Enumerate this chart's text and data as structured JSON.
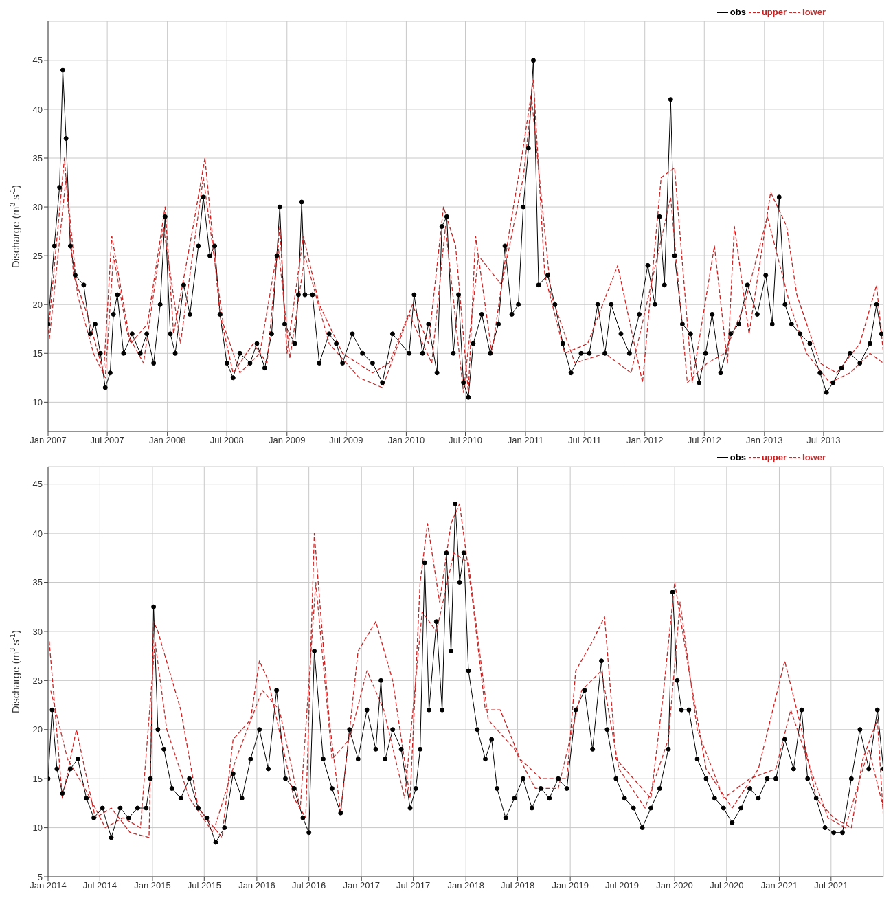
{
  "chart_data": [
    {
      "type": "line",
      "ylabel": "Discharge (m$^{3}$ s$^{-1}$)",
      "xlim": [
        "2007-01-01",
        "2013-12-31"
      ],
      "ylim": [
        7,
        49
      ],
      "yticks": [
        10,
        15,
        20,
        25,
        30,
        35,
        40,
        45
      ],
      "xticks": [
        {
          "value": "2007-01-01",
          "label": "Jan 2007"
        },
        {
          "value": "2007-07-01",
          "label": "Jul 2007"
        },
        {
          "value": "2008-01-01",
          "label": "Jan 2008"
        },
        {
          "value": "2008-07-01",
          "label": "Jul 2008"
        },
        {
          "value": "2009-01-01",
          "label": "Jan 2009"
        },
        {
          "value": "2009-07-01",
          "label": "Jul 2009"
        },
        {
          "value": "2010-01-01",
          "label": "Jan 2010"
        },
        {
          "value": "2010-07-01",
          "label": "Jul 2010"
        },
        {
          "value": "2011-01-01",
          "label": "Jan 2011"
        },
        {
          "value": "2011-07-01",
          "label": "Jul 2011"
        },
        {
          "value": "2012-01-01",
          "label": "Jan 2012"
        },
        {
          "value": "2012-07-01",
          "label": "Jul 2012"
        },
        {
          "value": "2013-01-01",
          "label": "Jan 2013"
        },
        {
          "value": "2013-07-01",
          "label": "Jul 2013"
        }
      ],
      "grid": true,
      "legend": "top right",
      "series": [
        {
          "name": "obs",
          "color": "#000000",
          "marker": "circle",
          "line_style": "solid",
          "x": [
            "2007-01-01",
            "2007-01-20",
            "2007-02-05",
            "2007-02-15",
            "2007-02-25",
            "2007-03-10",
            "2007-03-25",
            "2007-04-20",
            "2007-05-10",
            "2007-05-25",
            "2007-06-10",
            "2007-06-25",
            "2007-07-10",
            "2007-07-20",
            "2007-08-01",
            "2007-08-20",
            "2007-09-15",
            "2007-10-10",
            "2007-10-30",
            "2007-11-20",
            "2007-12-10",
            "2007-12-25",
            "2008-01-10",
            "2008-01-25",
            "2008-02-20",
            "2008-03-10",
            "2008-04-05",
            "2008-04-20",
            "2008-05-10",
            "2008-05-25",
            "2008-06-10",
            "2008-07-01",
            "2008-07-20",
            "2008-08-10",
            "2008-09-10",
            "2008-10-01",
            "2008-10-25",
            "2008-11-15",
            "2008-12-01",
            "2008-12-10",
            "2008-12-25",
            "2009-01-25",
            "2009-02-05",
            "2009-02-15",
            "2009-02-25",
            "2009-03-20",
            "2009-04-10",
            "2009-05-10",
            "2009-06-01",
            "2009-06-20",
            "2009-07-20",
            "2009-08-20",
            "2009-09-20",
            "2009-10-20",
            "2009-11-20",
            "2010-01-10",
            "2010-01-25",
            "2010-02-20",
            "2010-03-10",
            "2010-04-05",
            "2010-04-20",
            "2010-05-05",
            "2010-05-25",
            "2010-06-10",
            "2010-06-25",
            "2010-07-10",
            "2010-07-25",
            "2010-08-20",
            "2010-09-15",
            "2010-10-10",
            "2010-10-30",
            "2010-11-20",
            "2010-12-10",
            "2010-12-25",
            "2011-01-10",
            "2011-01-25",
            "2011-02-10",
            "2011-03-10",
            "2011-04-01",
            "2011-04-25",
            "2011-05-20",
            "2011-06-20",
            "2011-07-15",
            "2011-08-10",
            "2011-09-01",
            "2011-09-20",
            "2011-10-20",
            "2011-11-15",
            "2011-12-15",
            "2012-01-10",
            "2012-02-01",
            "2012-02-15",
            "2012-03-01",
            "2012-03-20",
            "2012-04-01",
            "2012-04-25",
            "2012-05-20",
            "2012-06-15",
            "2012-07-05",
            "2012-07-25",
            "2012-08-20",
            "2012-09-20",
            "2012-10-15",
            "2012-11-10",
            "2012-12-10",
            "2013-01-05",
            "2013-01-25",
            "2013-02-15",
            "2013-03-05",
            "2013-03-25",
            "2013-04-20",
            "2013-05-20",
            "2013-06-20",
            "2013-07-10",
            "2013-07-30",
            "2013-08-25",
            "2013-09-20",
            "2013-10-20",
            "2013-11-20",
            "2013-12-10",
            "2013-12-25"
          ],
          "values": [
            18,
            26,
            32,
            44,
            37,
            26,
            23,
            22,
            17,
            18,
            15,
            11.5,
            13,
            19,
            21,
            15,
            17,
            15,
            17,
            14,
            20,
            29,
            17,
            15,
            22,
            19,
            26,
            31,
            25,
            26,
            19,
            14,
            12.5,
            15,
            14,
            16,
            13.5,
            17,
            25,
            30,
            18,
            16,
            21,
            30.5,
            21,
            21,
            14,
            17,
            16,
            14,
            17,
            15,
            14,
            12,
            17,
            15,
            21,
            15,
            18,
            13,
            28,
            29,
            15,
            21,
            12,
            10.5,
            16,
            19,
            15,
            18,
            26,
            19,
            20,
            30,
            36,
            45,
            22,
            23,
            20,
            16,
            13,
            15,
            15,
            20,
            15,
            20,
            17,
            15,
            19,
            24,
            20,
            29,
            22,
            41,
            25,
            18,
            17,
            12,
            15,
            19,
            13,
            17,
            18,
            22,
            19,
            23,
            18,
            31,
            20,
            18,
            17,
            16,
            13,
            11,
            12,
            13.5,
            15,
            14,
            16,
            20,
            17
          ]
        },
        {
          "name": "upper",
          "color": "#cc2020",
          "marker": "none",
          "line_style": "dashed",
          "x": [
            "2007-01-01",
            "2007-02-20",
            "2007-03-20",
            "2007-05-01",
            "2007-06-20",
            "2007-07-15",
            "2007-08-10",
            "2007-09-10",
            "2007-11-01",
            "2007-12-25",
            "2008-01-20",
            "2008-03-20",
            "2008-04-25",
            "2008-06-10",
            "2008-07-20",
            "2008-09-20",
            "2008-11-01",
            "2008-12-10",
            "2009-01-01",
            "2009-02-20",
            "2009-04-10",
            "2009-06-20",
            "2009-09-20",
            "2009-11-10",
            "2010-01-20",
            "2010-03-10",
            "2010-04-25",
            "2010-06-01",
            "2010-07-10",
            "2010-08-01",
            "2010-09-20",
            "2010-11-10",
            "2010-12-20",
            "2011-01-25",
            "2011-03-01",
            "2011-05-01",
            "2011-07-10",
            "2011-10-10",
            "2011-12-25",
            "2012-02-20",
            "2012-04-01",
            "2012-05-25",
            "2012-08-01",
            "2012-09-10",
            "2012-10-01",
            "2012-11-15",
            "2013-01-20",
            "2013-03-10",
            "2013-04-10",
            "2013-06-20",
            "2013-08-10",
            "2013-10-20",
            "2013-12-10",
            "2013-12-31"
          ],
          "values": [
            17,
            35,
            23,
            19,
            13,
            27,
            22,
            16,
            18,
            30,
            17,
            28,
            35,
            19,
            13,
            16,
            14,
            28,
            15,
            27,
            20,
            15,
            13,
            14,
            20,
            16,
            30,
            26,
            11,
            27,
            15,
            27,
            35,
            43,
            23,
            15,
            16,
            24,
            12,
            33,
            34,
            12,
            26,
            14,
            28,
            17,
            31.5,
            28,
            21,
            14,
            13,
            16,
            22,
            15
          ]
        },
        {
          "name": "lower",
          "color": "#c43030",
          "marker": "none",
          "line_style": "dashed",
          "x": [
            "2007-01-05",
            "2007-02-25",
            "2007-04-01",
            "2007-05-20",
            "2007-06-25",
            "2007-07-20",
            "2007-09-01",
            "2007-10-20",
            "2007-12-20",
            "2008-02-10",
            "2008-04-20",
            "2008-06-20",
            "2008-08-10",
            "2008-10-10",
            "2008-12-05",
            "2009-01-10",
            "2009-02-25",
            "2009-05-10",
            "2009-08-10",
            "2009-10-20",
            "2010-01-10",
            "2010-03-20",
            "2010-05-01",
            "2010-06-25",
            "2010-08-10",
            "2010-10-20",
            "2010-12-25",
            "2011-01-20",
            "2011-03-20",
            "2011-06-01",
            "2011-09-01",
            "2011-11-20",
            "2012-01-20",
            "2012-03-20",
            "2012-05-10",
            "2012-07-10",
            "2012-09-01",
            "2012-11-01",
            "2013-01-10",
            "2013-03-20",
            "2013-05-10",
            "2013-07-20",
            "2013-09-20",
            "2013-11-20",
            "2013-12-31"
          ],
          "values": [
            16.5,
            33,
            21,
            15,
            12.5,
            25,
            17,
            14,
            28,
            16,
            33,
            18,
            13,
            15,
            26,
            14.5,
            25,
            16,
            12.5,
            11.5,
            19,
            14,
            28,
            11,
            25,
            22,
            33,
            41,
            21,
            14,
            15,
            13,
            22,
            31,
            12,
            14,
            15,
            20,
            29,
            20,
            15,
            12,
            13,
            15,
            14
          ]
        }
      ]
    },
    {
      "type": "line",
      "ylabel": "Discharge (m$^{3}$ s$^{-1}$)",
      "xlim": [
        "2014-01-01",
        "2021-12-31"
      ],
      "ylim": [
        5,
        46.8
      ],
      "yticks": [
        5,
        10,
        15,
        20,
        25,
        30,
        35,
        40,
        45
      ],
      "xticks": [
        {
          "value": "2014-01-01",
          "label": "Jan 2014"
        },
        {
          "value": "2014-07-01",
          "label": "Jul 2014"
        },
        {
          "value": "2015-01-01",
          "label": "Jan 2015"
        },
        {
          "value": "2015-07-01",
          "label": "Jul 2015"
        },
        {
          "value": "2016-01-01",
          "label": "Jan 2016"
        },
        {
          "value": "2016-07-01",
          "label": "Jul 2016"
        },
        {
          "value": "2017-01-01",
          "label": "Jan 2017"
        },
        {
          "value": "2017-07-01",
          "label": "Jul 2017"
        },
        {
          "value": "2018-01-01",
          "label": "Jan 2018"
        },
        {
          "value": "2018-07-01",
          "label": "Jul 2018"
        },
        {
          "value": "2019-01-01",
          "label": "Jan 2019"
        },
        {
          "value": "2019-07-01",
          "label": "Jul 2019"
        },
        {
          "value": "2020-01-01",
          "label": "Jan 2020"
        },
        {
          "value": "2020-07-01",
          "label": "Jul 2020"
        },
        {
          "value": "2021-01-01",
          "label": "Jan 2021"
        },
        {
          "value": "2021-07-01",
          "label": "Jul 2021"
        }
      ],
      "grid": true,
      "legend": "top right",
      "series": [
        {
          "name": "obs",
          "color": "#000000",
          "marker": "circle",
          "line_style": "solid",
          "x": [
            "2014-01-01",
            "2014-01-15",
            "2014-02-01",
            "2014-02-20",
            "2014-03-20",
            "2014-04-15",
            "2014-05-15",
            "2014-06-10",
            "2014-07-10",
            "2014-08-10",
            "2014-09-10",
            "2014-10-10",
            "2014-11-10",
            "2014-12-10",
            "2014-12-25",
            "2015-01-05",
            "2015-01-20",
            "2015-02-10",
            "2015-03-10",
            "2015-04-10",
            "2015-05-10",
            "2015-06-10",
            "2015-07-10",
            "2015-08-10",
            "2015-09-10",
            "2015-10-10",
            "2015-11-10",
            "2015-12-10",
            "2016-01-10",
            "2016-02-10",
            "2016-03-10",
            "2016-04-10",
            "2016-05-10",
            "2016-06-10",
            "2016-07-01",
            "2016-07-20",
            "2016-08-20",
            "2016-09-20",
            "2016-10-20",
            "2016-11-20",
            "2016-12-20",
            "2017-01-20",
            "2017-02-20",
            "2017-03-10",
            "2017-03-25",
            "2017-04-20",
            "2017-05-20",
            "2017-06-20",
            "2017-07-10",
            "2017-07-25",
            "2017-08-10",
            "2017-08-25",
            "2017-09-20",
            "2017-10-10",
            "2017-10-25",
            "2017-11-10",
            "2017-11-25",
            "2017-12-10",
            "2017-12-25",
            "2018-01-10",
            "2018-02-10",
            "2018-03-10",
            "2018-04-01",
            "2018-04-20",
            "2018-05-20",
            "2018-06-20",
            "2018-07-20",
            "2018-08-20",
            "2018-09-20",
            "2018-10-20",
            "2018-11-20",
            "2018-12-20",
            "2019-01-20",
            "2019-02-20",
            "2019-03-20",
            "2019-04-20",
            "2019-05-10",
            "2019-06-10",
            "2019-07-10",
            "2019-08-10",
            "2019-09-10",
            "2019-10-10",
            "2019-11-10",
            "2019-12-10",
            "2019-12-25",
            "2020-01-10",
            "2020-01-25",
            "2020-02-20",
            "2020-03-20",
            "2020-04-20",
            "2020-05-20",
            "2020-06-20",
            "2020-07-20",
            "2020-08-20",
            "2020-09-20",
            "2020-10-20",
            "2020-11-20",
            "2020-12-20",
            "2021-01-20",
            "2021-02-20",
            "2021-03-20",
            "2021-04-10",
            "2021-05-10",
            "2021-06-10",
            "2021-07-10",
            "2021-08-10",
            "2021-09-10",
            "2021-10-10",
            "2021-11-10",
            "2021-12-10",
            "2021-12-31"
          ],
          "values": [
            15,
            22,
            16,
            13.5,
            16,
            17,
            13,
            11,
            12,
            9,
            12,
            11,
            12,
            12,
            15,
            32.5,
            20,
            18,
            14,
            13,
            15,
            12,
            11,
            8.5,
            10,
            15.5,
            13,
            17,
            20,
            16,
            24,
            15,
            14,
            11,
            9.5,
            28,
            17,
            14,
            11.5,
            20,
            17,
            22,
            18,
            25,
            17,
            20,
            18,
            12,
            14,
            18,
            37,
            22,
            31,
            22,
            38,
            28,
            43,
            35,
            38,
            26,
            20,
            17,
            19,
            14,
            11,
            13,
            15,
            12,
            14,
            13,
            15,
            14,
            22,
            24,
            18,
            27,
            20,
            15,
            13,
            12,
            10,
            12,
            14,
            18,
            34,
            25,
            22,
            22,
            17,
            15,
            13,
            12,
            10.5,
            12,
            14,
            13,
            15,
            15,
            19,
            16,
            22,
            15,
            13,
            10,
            9.5,
            9.5,
            15,
            20,
            16,
            22,
            16
          ]
        },
        {
          "name": "upper",
          "color": "#cc2020",
          "marker": "none",
          "line_style": "dashed",
          "x": [
            "2014-01-05",
            "2014-02-20",
            "2014-04-10",
            "2014-06-15",
            "2014-08-10",
            "2014-10-15",
            "2014-12-20",
            "2015-01-05",
            "2015-01-20",
            "2015-04-10",
            "2015-06-10",
            "2015-09-01",
            "2015-10-10",
            "2015-12-10",
            "2016-01-10",
            "2016-02-10",
            "2016-05-10",
            "2016-06-20",
            "2016-07-20",
            "2016-09-10",
            "2016-10-20",
            "2016-12-20",
            "2017-02-20",
            "2017-04-20",
            "2017-06-20",
            "2017-07-25",
            "2017-08-20",
            "2017-10-01",
            "2017-11-10",
            "2017-12-10",
            "2018-01-25",
            "2018-03-10",
            "2018-05-01",
            "2018-07-10",
            "2018-09-20",
            "2018-12-20",
            "2019-01-20",
            "2019-03-20",
            "2019-05-01",
            "2019-06-10",
            "2019-08-10",
            "2019-10-10",
            "2019-11-20",
            "2020-01-01",
            "2020-02-20",
            "2020-04-20",
            "2020-07-20",
            "2020-10-20",
            "2021-01-20",
            "2021-03-20",
            "2021-05-10",
            "2021-07-10",
            "2021-09-10",
            "2021-10-20",
            "2021-12-10",
            "2021-12-31"
          ],
          "values": [
            29,
            13,
            20,
            11,
            12,
            9.5,
            9,
            31,
            30,
            22,
            12,
            9,
            19,
            21,
            27,
            25,
            13,
            11,
            40,
            21,
            11.5,
            28,
            31,
            25,
            13,
            35,
            41,
            33,
            41,
            43,
            33,
            22,
            22,
            17,
            15,
            15,
            26,
            29,
            31.5,
            17,
            15,
            13,
            23,
            35,
            26,
            16,
            12,
            16,
            27,
            20,
            13,
            11,
            10,
            17,
            21,
            11
          ]
        },
        {
          "name": "lower",
          "color": "#c43030",
          "marker": "none",
          "line_style": "dashed",
          "x": [
            "2014-01-10",
            "2014-03-10",
            "2014-05-10",
            "2014-07-20",
            "2014-09-20",
            "2014-11-20",
            "2015-01-10",
            "2015-02-20",
            "2015-05-10",
            "2015-08-01",
            "2015-10-20",
            "2016-01-20",
            "2016-03-20",
            "2016-06-01",
            "2016-07-25",
            "2016-09-20",
            "2016-11-20",
            "2017-01-20",
            "2017-03-20",
            "2017-06-01",
            "2017-08-01",
            "2017-09-20",
            "2017-11-20",
            "2018-01-10",
            "2018-03-20",
            "2018-06-20",
            "2018-09-01",
            "2018-11-20",
            "2019-02-10",
            "2019-04-20",
            "2019-06-20",
            "2019-09-20",
            "2019-12-10",
            "2020-01-20",
            "2020-03-20",
            "2020-06-20",
            "2020-09-20",
            "2020-12-20",
            "2021-02-10",
            "2021-04-20",
            "2021-06-20",
            "2021-08-20",
            "2021-11-10",
            "2021-12-31"
          ],
          "values": [
            24,
            17,
            14,
            10,
            11,
            10,
            29,
            20,
            13,
            9.5,
            17,
            24,
            22,
            12,
            35,
            17,
            19,
            26,
            22,
            13,
            32,
            30,
            38,
            37,
            21,
            18,
            14,
            14,
            24,
            26,
            16,
            12,
            19,
            33,
            20,
            13,
            15,
            16,
            22,
            16,
            11,
            10,
            18,
            12
          ]
        }
      ]
    }
  ]
}
